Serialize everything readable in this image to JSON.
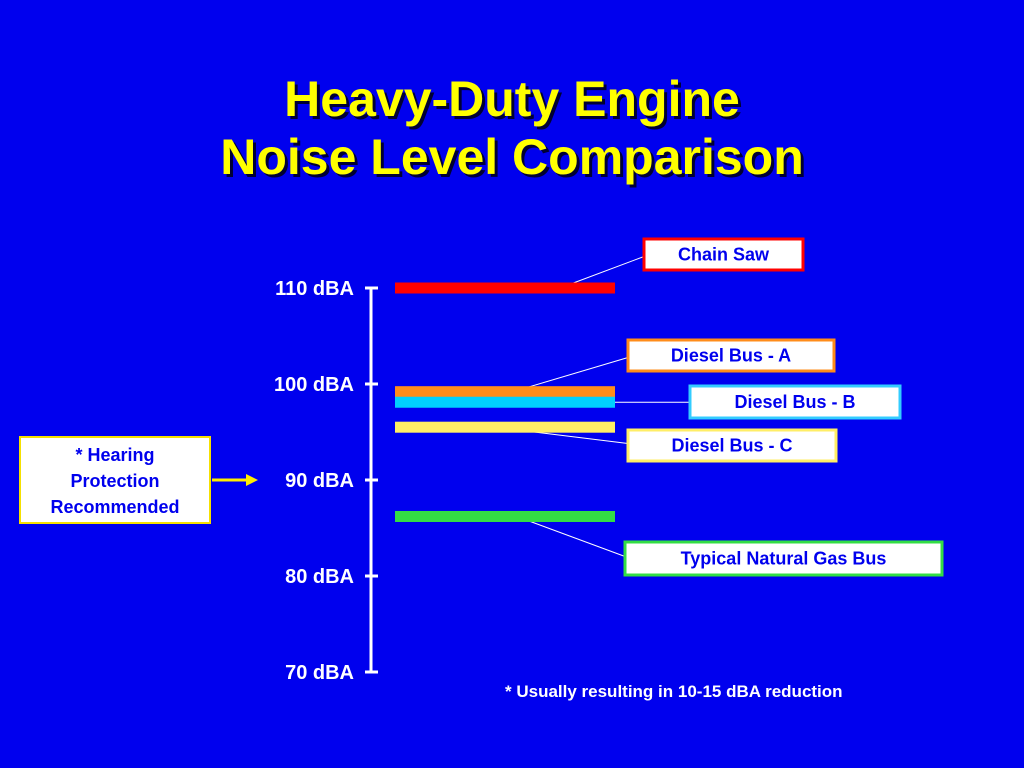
{
  "title": {
    "line1": "Heavy-Duty Engine",
    "line2": "Noise Level Comparison"
  },
  "chart_data": {
    "type": "bar",
    "orientation": "level-markers",
    "ylabel": "",
    "ylim": [
      70,
      110
    ],
    "yticks": [
      {
        "value": 110,
        "label": "110 dBA"
      },
      {
        "value": 100,
        "label": "100 dBA"
      },
      {
        "value": 90,
        "label": "90 dBA"
      },
      {
        "value": 80,
        "label": "80 dBA"
      },
      {
        "value": 70,
        "label": "70 dBA"
      }
    ],
    "series": [
      {
        "name": "Chain Saw",
        "value": 110,
        "color": "#ff0000",
        "label_border": "#ff0000"
      },
      {
        "name": "Diesel Bus - A",
        "value": 99.2,
        "color": "#ff8c1a",
        "label_border": "#ff8c1a"
      },
      {
        "name": "Diesel Bus - B",
        "value": 98.1,
        "color": "#00d0ff",
        "label_border": "#33ccff"
      },
      {
        "name": "Diesel Bus - C",
        "value": 95.5,
        "color": "#ffee66",
        "label_border": "#ffee66"
      },
      {
        "name": "Typical Natural Gas Bus",
        "value": 86.2,
        "color": "#33dd44",
        "label_border": "#33dd44"
      }
    ],
    "grid": false
  },
  "hearing_note": {
    "line1": "* Hearing",
    "line2": "Protection",
    "line3": "Recommended",
    "points_to": 90
  },
  "footnote": "* Usually resulting in 10-15 dBA reduction",
  "colors": {
    "background": "#0000ee",
    "title": "#ffff00",
    "axis": "#ffffff",
    "arrow": "#ffee00"
  }
}
